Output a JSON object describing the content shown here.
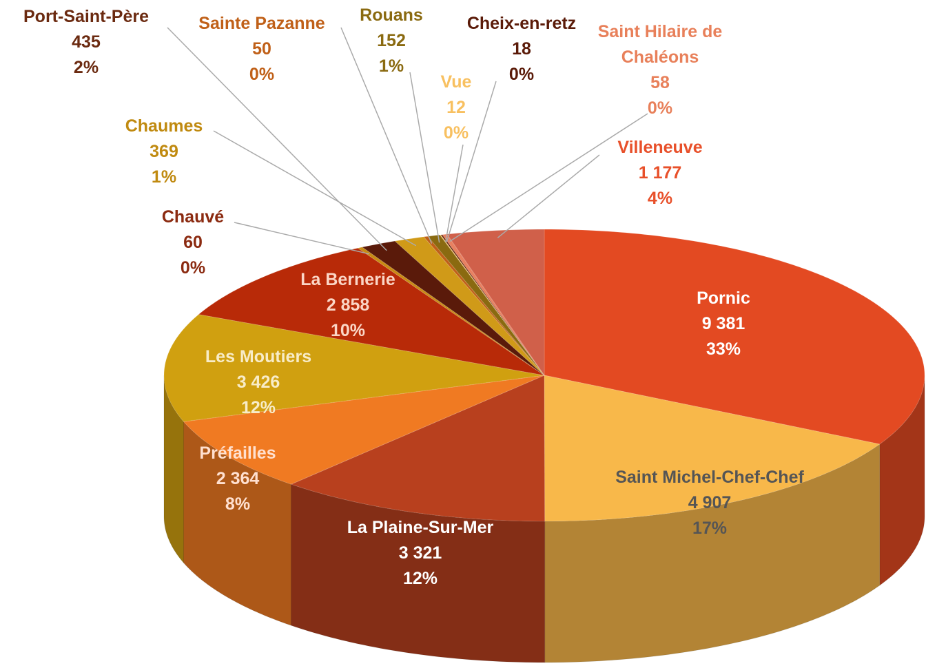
{
  "chart_data": {
    "type": "pie3d",
    "categories": [
      "Pornic",
      "Saint Michel-Chef-Chef",
      "La Plaine-Sur-Mer",
      "Préfailles",
      "Les Moutiers",
      "La Bernerie",
      "Chauvé",
      "Port-Saint-Père",
      "Chaumes",
      "Sainte Pazanne",
      "Rouans",
      "Vue",
      "Cheix-en-retz",
      "Saint Hilaire de Chaléons",
      "Villeneuve"
    ],
    "values": [
      9381,
      4907,
      3321,
      2364,
      3426,
      2858,
      60,
      435,
      369,
      50,
      152,
      12,
      18,
      58,
      1177
    ],
    "value_labels": [
      "9 381",
      "4 907",
      "3 321",
      "2 364",
      "3 426",
      "2 858",
      "60",
      "435",
      "369",
      "50",
      "152",
      "12",
      "18",
      "58",
      "1 177"
    ],
    "percent_labels": [
      "33%",
      "17%",
      "12%",
      "8%",
      "12%",
      "10%",
      "0%",
      "2%",
      "1%",
      "0%",
      "1%",
      "0%",
      "0%",
      "0%",
      "4%"
    ],
    "colors": [
      "#e34a22",
      "#f8b84a",
      "#b8401e",
      "#f07a22",
      "#d0a010",
      "#b82a08",
      "#c88a12",
      "#5a1a0a",
      "#d09a18",
      "#c06018",
      "#8a6a10",
      "#f8c060",
      "#5a1a08",
      "#e88060",
      "#d0604a"
    ]
  }
}
